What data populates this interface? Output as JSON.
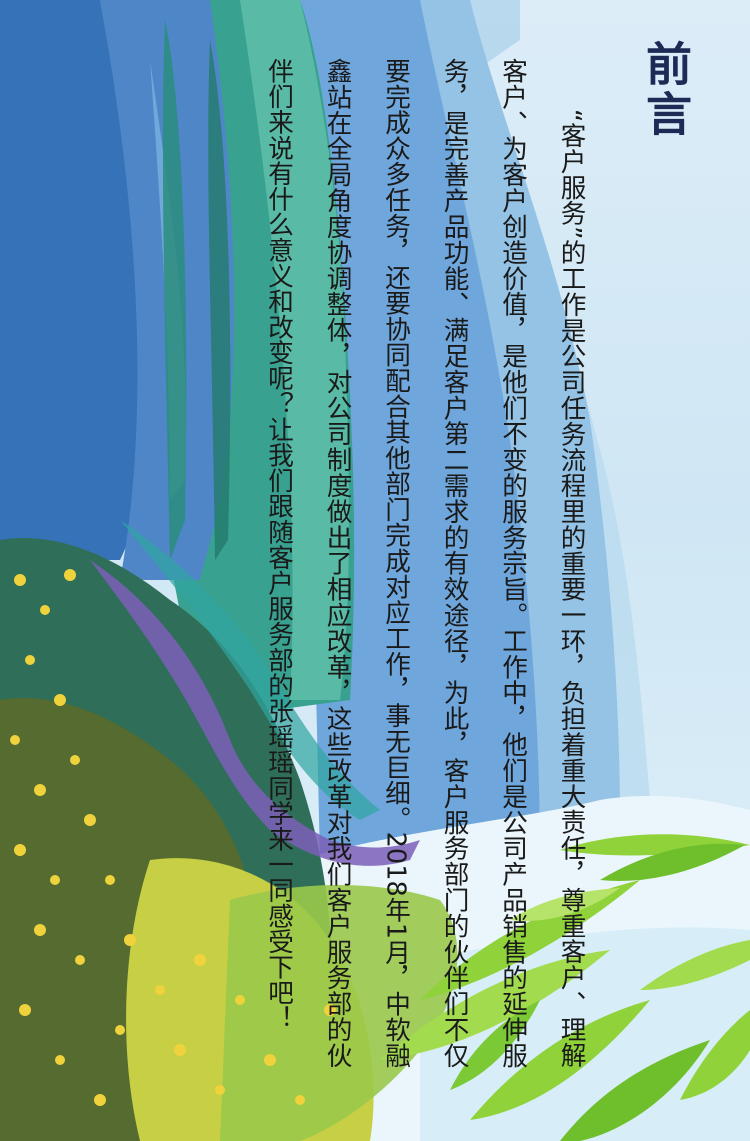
{
  "page": {
    "title": "前言",
    "paragraph": "“客户服务”的工作是公司任务流程里的重要一环，负担着重大责任，尊重客户、理解客户、为客户创造价值，是他们不变的服务宗旨。工作中，他们是公司产品销售的延伸服务，是完善产品功能、满足客户第二需求的有效途径，为此，客户服务部门的伙伴们不仅要完成众多任务，还要协同配合其他部门完成对应工作，事无巨细。2018年1月，中软融鑫站在全局角度协调整体，对公司制度做出了相应改革，这些改革对我们客户服务部的伙伴们来说有什么意义和改变呢？让我们跟随客户服务部的张瑶瑶同学来一同感受下吧！"
  },
  "colors": {
    "title": "#1d2a55",
    "text": "#1a1a1a",
    "sky": "#cfe6f4",
    "teal": "#2f9a93",
    "blue": "#3b6fc0",
    "leaf": "#8fd23a",
    "water": "#eaf6fb"
  }
}
